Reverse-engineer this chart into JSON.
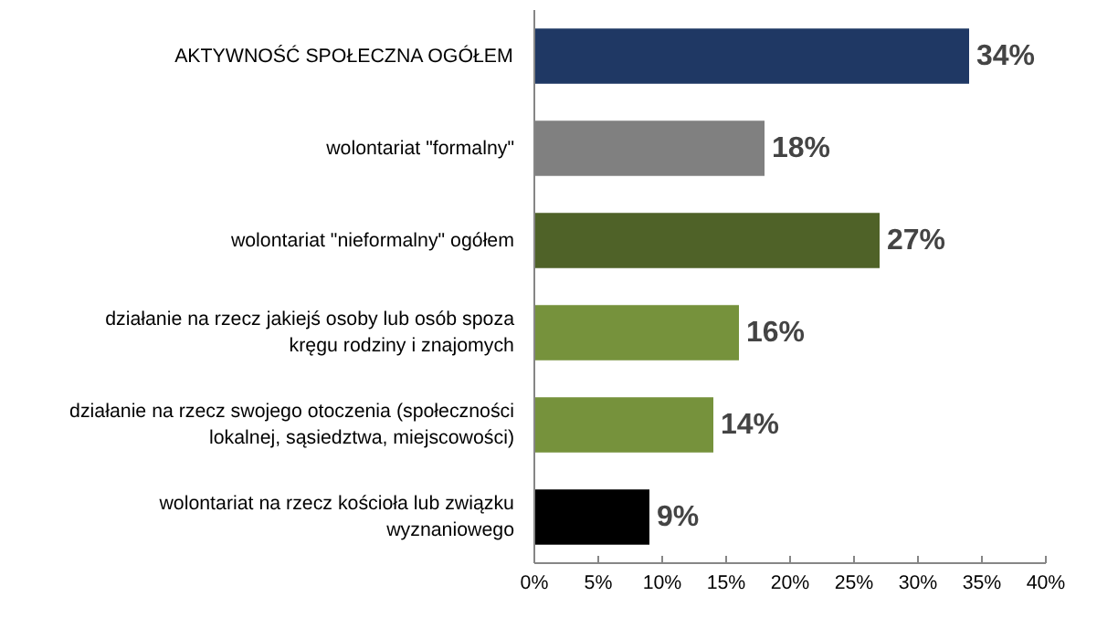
{
  "chart_data": {
    "type": "bar",
    "orientation": "horizontal",
    "categories": [
      "AKTYWNOŚĆ SPOŁECZNA OGÓŁEM",
      "wolontariat \"formalny\"",
      "wolontariat \"nieformalny\" ogółem",
      "działanie na rzecz jakiejś osoby lub osób spoza kręgu rodziny i znajomych",
      "działanie na rzecz swojego otoczenia (społeczności lokalnej, sąsiedztwa, miejscowości)",
      "wolontariat na rzecz kościoła lub związku wyznaniowego"
    ],
    "values": [
      34,
      18,
      27,
      16,
      14,
      9
    ],
    "colors": [
      "#1f3864",
      "#808080",
      "#4f6228",
      "#76923c",
      "#76923c",
      "#000000"
    ],
    "value_labels": [
      "34%",
      "18%",
      "27%",
      "16%",
      "14%",
      "9%"
    ],
    "xlim": [
      0,
      40
    ],
    "xticks": [
      {
        "value": 0,
        "label": "0%"
      },
      {
        "value": 5,
        "label": "5%"
      },
      {
        "value": 10,
        "label": "10%"
      },
      {
        "value": 15,
        "label": "15%"
      },
      {
        "value": 20,
        "label": "20%"
      },
      {
        "value": 25,
        "label": "25%"
      },
      {
        "value": 30,
        "label": "30%"
      },
      {
        "value": 35,
        "label": "35%"
      },
      {
        "value": 40,
        "label": "40%"
      }
    ],
    "grid": false
  }
}
